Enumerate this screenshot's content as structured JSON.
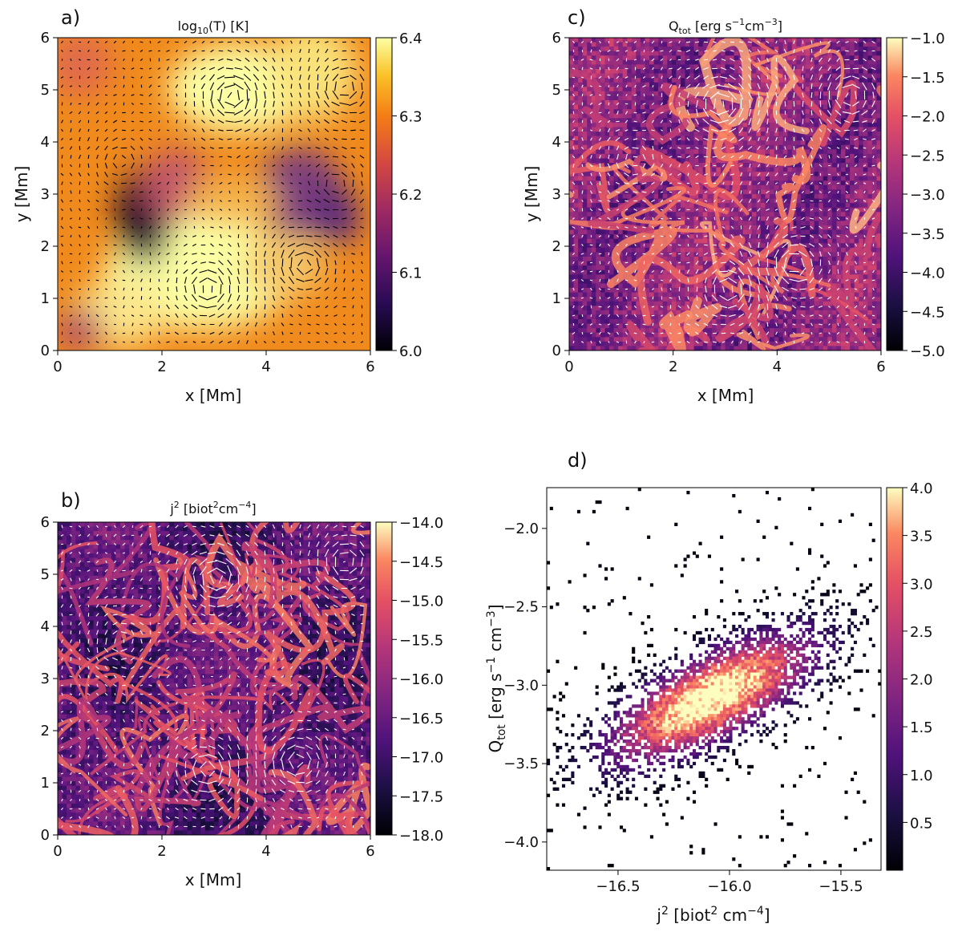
{
  "chart_data": [
    {
      "panel": "a)",
      "type": "heatmap",
      "title_main": "log",
      "title_sub": "10",
      "title_rest": "(T) [K]",
      "xlabel": "x [Mm]",
      "ylabel": "y [Mm]",
      "xlim": [
        0,
        6
      ],
      "ylim": [
        0,
        6
      ],
      "x_ticks": [
        "0",
        "2",
        "4",
        "6"
      ],
      "y_ticks": [
        "0",
        "1",
        "2",
        "3",
        "4",
        "5",
        "6"
      ],
      "colorbar": {
        "min": 6.0,
        "max": 6.4,
        "ticks": [
          "6.0",
          "6.1",
          "6.2",
          "6.3",
          "6.4"
        ]
      },
      "colormap": "inferno",
      "overlay": "velocity vectors",
      "arrow_color": "#000000"
    },
    {
      "panel": "b)",
      "type": "heatmap",
      "title_main": "j",
      "title_sup": "2",
      "title_rest": " [biot",
      "title_sup2": "2",
      "title_rest2": "cm",
      "title_sup3": "−4",
      "title_end": "]",
      "xlabel": "x [Mm]",
      "ylabel": "",
      "xlim": [
        0,
        6
      ],
      "ylim": [
        0,
        6
      ],
      "x_ticks": [
        "0",
        "2",
        "4",
        "6"
      ],
      "y_ticks": [
        "0",
        "1",
        "2",
        "3",
        "4",
        "5",
        "6"
      ],
      "colorbar": {
        "min": -18.0,
        "max": -14.0,
        "ticks": [
          "−18.0",
          "−17.5",
          "−17.0",
          "−16.5",
          "−16.0",
          "−15.5",
          "−15.0",
          "−14.5",
          "−14.0"
        ]
      },
      "colormap": "magma",
      "overlay": "velocity vectors",
      "arrow_color": "#ffffff"
    },
    {
      "panel": "c)",
      "type": "heatmap",
      "title_main": "Q",
      "title_sub": "tot",
      "title_rest": " [erg s",
      "title_sup": "−1",
      "title_rest2": "cm",
      "title_sup2": "−3",
      "title_end": "]",
      "xlabel": "x [Mm]",
      "ylabel": "y [Mm]",
      "xlim": [
        0,
        6
      ],
      "ylim": [
        0,
        6
      ],
      "x_ticks": [
        "0",
        "2",
        "4",
        "6"
      ],
      "y_ticks": [
        "0",
        "1",
        "2",
        "3",
        "4",
        "5",
        "6"
      ],
      "colorbar": {
        "min": -5.0,
        "max": -1.0,
        "ticks": [
          "−5.0",
          "−4.5",
          "−4.0",
          "−3.5",
          "−3.0",
          "−2.5",
          "−2.0",
          "−1.5",
          "−1.0"
        ]
      },
      "colormap": "magma",
      "overlay": "velocity vectors",
      "arrow_color": "#ffffff"
    },
    {
      "panel": "d)",
      "type": "heatmap",
      "subtype": "2d-histogram",
      "xlabel_main": "j",
      "xlabel_sup": "2",
      "xlabel_rest": " [biot",
      "xlabel_sup2": "2",
      "xlabel_rest2": " cm",
      "xlabel_sup3": "−4",
      "xlabel_end": "]",
      "ylabel_main": "Q",
      "ylabel_sub": "tot",
      "ylabel_rest": " [erg s",
      "ylabel_sup": "−1",
      "ylabel_rest2": " cm",
      "ylabel_sup2": "−3",
      "ylabel_end": "]",
      "xlim": [
        -16.82,
        -15.32
      ],
      "ylim": [
        -4.18,
        -1.74
      ],
      "x_tick_values": [
        -16.5,
        -16.0,
        -15.5
      ],
      "x_ticks": [
        "−16.5",
        "−16.0",
        "−15.5"
      ],
      "y_tick_values": [
        -4.0,
        -3.5,
        -3.0,
        -2.5,
        -2.0
      ],
      "y_ticks": [
        "−4.0",
        "−3.5",
        "−3.0",
        "−2.5",
        "−2.0"
      ],
      "distribution": {
        "center_x": -16.08,
        "center_y": -3.08,
        "correlation": "positive",
        "peak_log_count": 4.0
      },
      "colorbar": {
        "min": 0.0,
        "max": 4.0,
        "ticks": [
          "0.5",
          "1.0",
          "1.5",
          "2.0",
          "2.5",
          "3.0",
          "3.5",
          "4.0"
        ]
      },
      "colormap": "magma"
    }
  ]
}
